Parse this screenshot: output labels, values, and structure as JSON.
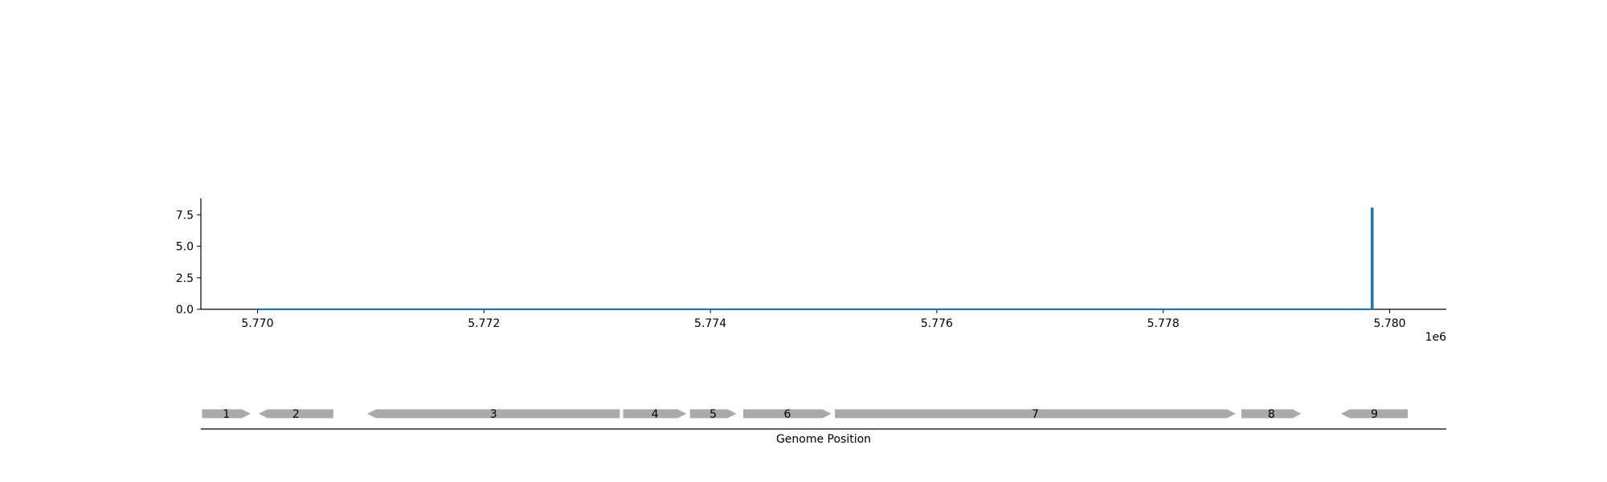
{
  "chart_data": [
    {
      "type": "line",
      "title": "",
      "xlabel": "",
      "ylabel": "",
      "x_offset_label": "1e6",
      "xlim": [
        5769500,
        5780500
      ],
      "ylim": [
        0,
        8.8
      ],
      "x_ticks": [
        5770000,
        5772000,
        5774000,
        5776000,
        5778000,
        5780000
      ],
      "x_tick_labels": [
        "5.770",
        "5.772",
        "5.774",
        "5.776",
        "5.778",
        "5.780"
      ],
      "y_ticks": [
        0,
        2.5,
        5,
        7.5
      ],
      "y_tick_labels": [
        "0.0",
        "2.5",
        "5.0",
        "7.5"
      ],
      "grid": false,
      "series": [
        {
          "color": "#1f77b4",
          "x": [
            5770000,
            5779840,
            5779840,
            5779850,
            5779850
          ],
          "y": [
            0,
            0,
            8,
            8,
            0
          ]
        }
      ]
    },
    {
      "type": "gene-track",
      "xlabel": "Genome Position",
      "xlim": [
        5769500,
        5780500
      ],
      "gene_color": "#aaaaaa",
      "genes": [
        {
          "label": "1",
          "start": 5769510,
          "end": 5769940,
          "strand": "+"
        },
        {
          "label": "2",
          "start": 5770010,
          "end": 5770670,
          "strand": "-"
        },
        {
          "label": "3",
          "start": 5770970,
          "end": 5773200,
          "strand": "-"
        },
        {
          "label": "4",
          "start": 5773230,
          "end": 5773790,
          "strand": "+"
        },
        {
          "label": "5",
          "start": 5773820,
          "end": 5774230,
          "strand": "+"
        },
        {
          "label": "6",
          "start": 5774290,
          "end": 5775070,
          "strand": "+"
        },
        {
          "label": "7",
          "start": 5775100,
          "end": 5778640,
          "strand": "+"
        },
        {
          "label": "8",
          "start": 5778690,
          "end": 5779220,
          "strand": "+"
        },
        {
          "label": "9",
          "start": 5779570,
          "end": 5780160,
          "strand": "-"
        }
      ]
    }
  ]
}
